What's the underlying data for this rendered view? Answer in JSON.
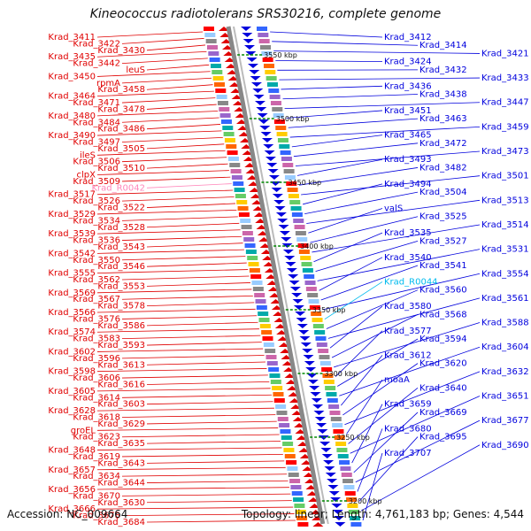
{
  "header": {
    "title": "Kineococcus radiotolerans SRS30216, complete genome"
  },
  "footer": {
    "accession": "Accession: NC_009664",
    "summary": "Topology: linear; Length: 4,761,183 bp; Genes: 4,544"
  },
  "colors": {
    "left_strand": "#e00000",
    "right_strand": "#0000dd",
    "rna_left": "#ff88bb",
    "rna_right": "#00bbee",
    "axis": "#888888",
    "tick": "#008800"
  },
  "scale": {
    "unit": "kbp",
    "ticks": [
      "3550 kbp",
      "3500 kbp",
      "3450 kbp",
      "3400 kbp",
      "3350 kbp",
      "3300 kbp",
      "3250 kbp",
      "3200 kbp"
    ]
  },
  "left_labels": [
    "Krad_3411",
    "Krad_3422",
    "Krad_3430",
    "Krad_3435",
    "Krad_3442",
    "leuS",
    "Krad_3450",
    "rpmA",
    "Krad_3458",
    "Krad_3464",
    "Krad_3471",
    "Krad_3478",
    "Krad_3480",
    "Krad_3484",
    "Krad_3486",
    "Krad_3490",
    "Krad_3497",
    "Krad_3505",
    "ileS",
    "Krad_3506",
    "Krad_3510",
    "clpX",
    "Krad_3509",
    "Krad_R0042",
    "Krad_3517",
    "Krad_3526",
    "Krad_3522",
    "Krad_3529",
    "Krad_3534",
    "Krad_3528",
    "Krad_3539",
    "Krad_3536",
    "Krad_3543",
    "Krad_3542",
    "Krad_3550",
    "Krad_3546",
    "Krad_3555",
    "Krad_3562",
    "Krad_3553",
    "Krad_3569",
    "Krad_3567",
    "Krad_3578",
    "Krad_3566",
    "Krad_3576",
    "Krad_3586",
    "Krad_3574",
    "Krad_3583",
    "Krad_3593",
    "Krad_3602",
    "Krad_3596",
    "Krad_3613",
    "Krad_3598",
    "Krad_3606",
    "Krad_3616",
    "Krad_3605",
    "Krad_3614",
    "Krad_3603",
    "Krad_3628",
    "Krad_3618",
    "Krad_3629",
    "groEL",
    "Krad_3623",
    "Krad_3635",
    "Krad_3648",
    "Krad_3619",
    "Krad_3643",
    "Krad_3657",
    "Krad_3634",
    "Krad_3644",
    "Krad_3656",
    "Krad_3670",
    "Krad_3630",
    "Krad_3666",
    "Krad_3678",
    "Krad_3684"
  ],
  "right_labels": [
    "Krad_3412",
    "Krad_3414",
    "Krad_3421",
    "Krad_3424",
    "Krad_3432",
    "Krad_3433",
    "Krad_3436",
    "Krad_3438",
    "Krad_3447",
    "Krad_3451",
    "Krad_3463",
    "Krad_3459",
    "Krad_3465",
    "Krad_3472",
    "Krad_3473",
    "Krad_3493",
    "Krad_3482",
    "Krad_3501",
    "Krad_3494",
    "Krad_3504",
    "Krad_3513",
    "valS",
    "Krad_3525",
    "Krad_3514",
    "Krad_3535",
    "Krad_3527",
    "Krad_3531",
    "Krad_3540",
    "Krad_3541",
    "Krad_3554",
    "Krad_R0044",
    "Krad_3560",
    "Krad_3561",
    "Krad_3580",
    "Krad_3568",
    "Krad_3588",
    "Krad_3577",
    "Krad_3594",
    "Krad_3604",
    "Krad_3612",
    "Krad_3620",
    "Krad_3632",
    "moaA",
    "Krad_3640",
    "Krad_3651",
    "Krad_3659",
    "Krad_3669",
    "Krad_3677",
    "Krad_3680",
    "Krad_3695",
    "Krad_3690",
    "Krad_3707"
  ]
}
